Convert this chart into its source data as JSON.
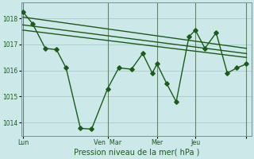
{
  "background_color": "#cce8e8",
  "grid_color": "#aacccc",
  "line_color": "#1a5c1a",
  "xlabel": "Pression niveau de la mer( hPa )",
  "ylim": [
    1013.5,
    1018.6
  ],
  "yticks": [
    1014,
    1015,
    1016,
    1017,
    1018
  ],
  "xlim": [
    0,
    288
  ],
  "day_positions": [
    2,
    74,
    110,
    170,
    218,
    282
  ],
  "day_labels": [
    "Lun",
    "Ven",
    "Mar",
    "Mer",
    "Jeu",
    ""
  ],
  "xtick_positions": [
    2,
    110,
    170,
    218,
    282
  ],
  "xtick_labels": [
    "Lun",
    "Ven  Mar",
    "",
    "Mer",
    "Jeu"
  ],
  "vline_positions": [
    2,
    108,
    112,
    170,
    218,
    282
  ],
  "series1_x": [
    2,
    14,
    30,
    44,
    56,
    74,
    88,
    108,
    122,
    138,
    152,
    164,
    170,
    182,
    194,
    210,
    218,
    230,
    244,
    258,
    270,
    282
  ],
  "series1_y": [
    1018.25,
    1017.8,
    1016.85,
    1016.8,
    1016.1,
    1013.78,
    1013.75,
    1015.3,
    1016.1,
    1016.05,
    1016.65,
    1015.9,
    1016.25,
    1015.5,
    1014.8,
    1017.3,
    1017.55,
    1016.85,
    1017.45,
    1015.9,
    1016.1,
    1016.25
  ],
  "series2_x": [
    2,
    282
  ],
  "series2_y": [
    1018.05,
    1016.85
  ],
  "series3_x": [
    2,
    282
  ],
  "series3_y": [
    1017.75,
    1016.65
  ],
  "series4_x": [
    2,
    282
  ],
  "series4_y": [
    1017.55,
    1016.5
  ],
  "marker": "D",
  "markersize": 2.8,
  "linewidth": 1.0
}
